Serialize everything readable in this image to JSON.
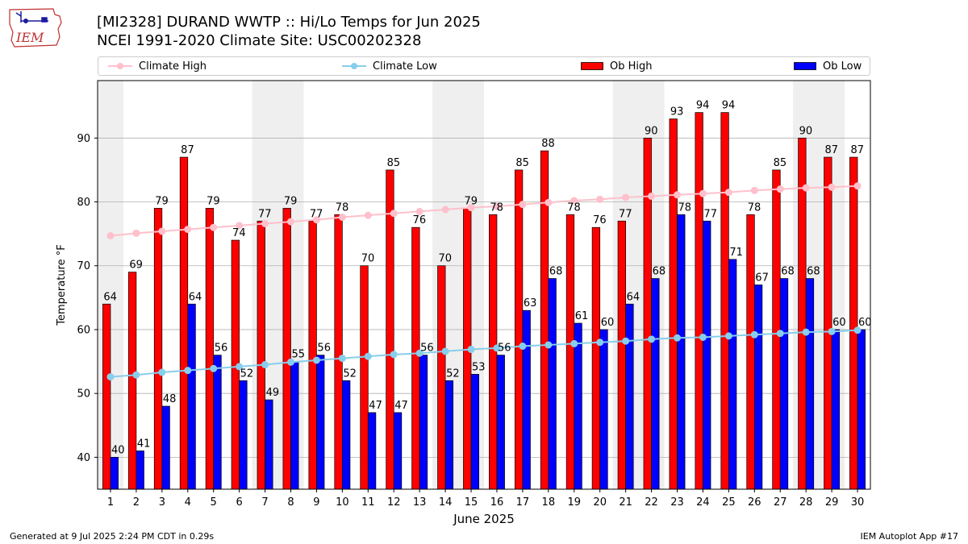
{
  "logo": {
    "text": "IEM"
  },
  "header": {
    "title": "[MI2328] DURAND WWTP :: Hi/Lo Temps for Jun 2025",
    "subtitle": "NCEI 1991-2020 Climate Site: USC00202328"
  },
  "footer": {
    "left": "Generated at 9 Jul 2025 2:24 PM CDT in 0.29s",
    "right": "IEM Autoplot App #17"
  },
  "colors": {
    "ob_high": "#ff0000",
    "ob_low": "#0000ff",
    "climate_high": "#ffc0cb",
    "climate_low": "#87ceeb",
    "weekend_shade": "#efefef"
  },
  "chart_data": {
    "type": "bar",
    "xlabel": "June 2025",
    "ylabel": "Temperature °F",
    "ylim": [
      35,
      99
    ],
    "xlim": [
      0.5,
      30.5
    ],
    "yticks": [
      40,
      50,
      60,
      70,
      80,
      90
    ],
    "grid": "horizontal",
    "legend": "top",
    "categories": [
      "1",
      "2",
      "3",
      "4",
      "5",
      "6",
      "7",
      "8",
      "9",
      "10",
      "11",
      "12",
      "13",
      "14",
      "15",
      "16",
      "17",
      "18",
      "19",
      "20",
      "21",
      "22",
      "23",
      "24",
      "25",
      "26",
      "27",
      "28",
      "29",
      "30"
    ],
    "shaded_days": [
      1,
      7,
      8,
      14,
      15,
      21,
      22,
      28,
      29
    ],
    "series": [
      {
        "name": "Ob High",
        "kind": "bar",
        "color": "#ff0000",
        "values": [
          64,
          69,
          79,
          87,
          79,
          74,
          77,
          79,
          77,
          78,
          70,
          85,
          76,
          70,
          79,
          78,
          85,
          88,
          78,
          76,
          77,
          90,
          93,
          94,
          94,
          78,
          85,
          90,
          87,
          87
        ]
      },
      {
        "name": "Ob Low",
        "kind": "bar",
        "color": "#0000ff",
        "values": [
          40,
          41,
          48,
          64,
          56,
          52,
          49,
          55,
          56,
          52,
          47,
          47,
          56,
          52,
          53,
          56,
          63,
          68,
          61,
          60,
          64,
          68,
          78,
          77,
          71,
          67,
          68,
          68,
          60,
          60
        ]
      },
      {
        "name": "Climate High",
        "kind": "line",
        "color": "#ffc0cb",
        "values": [
          74.7,
          75.1,
          75.4,
          75.7,
          76.0,
          76.3,
          76.6,
          76.9,
          77.2,
          77.6,
          77.9,
          78.2,
          78.5,
          78.8,
          79.1,
          79.3,
          79.6,
          79.9,
          80.2,
          80.4,
          80.7,
          80.9,
          81.1,
          81.3,
          81.5,
          81.8,
          82.0,
          82.2,
          82.3,
          82.5
        ]
      },
      {
        "name": "Climate Low",
        "kind": "line",
        "color": "#87ceeb",
        "values": [
          52.6,
          52.9,
          53.3,
          53.6,
          53.9,
          54.2,
          54.5,
          54.9,
          55.2,
          55.5,
          55.8,
          56.1,
          56.3,
          56.6,
          56.9,
          57.1,
          57.4,
          57.6,
          57.8,
          58.0,
          58.2,
          58.5,
          58.7,
          58.8,
          59.0,
          59.2,
          59.4,
          59.6,
          59.7,
          59.9
        ]
      }
    ]
  }
}
